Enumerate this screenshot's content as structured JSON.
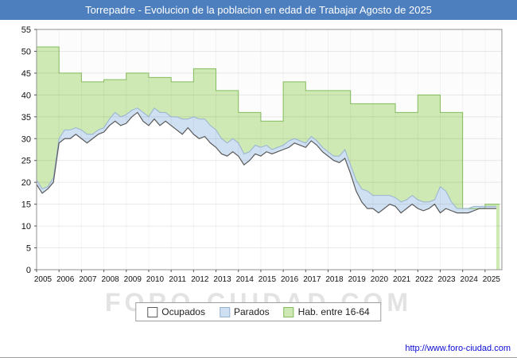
{
  "title_bar": {
    "text": "Torrepadre - Evolucion de la poblacion en edad de Trabajar Agosto de 2025",
    "bg": "#4d7fbe"
  },
  "watermark": "FORO-CIUDAD.COM",
  "footer": {
    "url": "http://www.foro-ciudad.com"
  },
  "chart_data": {
    "type": "area",
    "title": "Torrepadre - Evolucion de la poblacion en edad de Trabajar Agosto de 2025",
    "xlabel": "",
    "ylabel": "",
    "ylim": [
      0,
      55
    ],
    "ytick_step": 5,
    "xlim": [
      2005,
      2025.75
    ],
    "xticks": [
      2005,
      2006,
      2007,
      2008,
      2009,
      2010,
      2011,
      2012,
      2013,
      2014,
      2015,
      2016,
      2017,
      2018,
      2019,
      2020,
      2021,
      2022,
      2023,
      2024,
      2025
    ],
    "grid": true,
    "legend_position": "bottom",
    "legend": [
      "Ocupados",
      "Parados",
      "Hab. entre 16-64"
    ],
    "series": [
      {
        "name": "Ocupados",
        "kind": "line-area",
        "fill": "#ffffff",
        "stroke": "#5a5a5a",
        "x_start": 2005,
        "x_step": 0.25,
        "values": [
          19.5,
          17.5,
          18.5,
          20,
          29,
          30,
          30,
          31,
          30,
          29,
          30,
          31,
          31.5,
          33,
          34,
          33,
          33.5,
          35,
          36,
          34,
          33,
          34.5,
          33,
          34,
          33,
          32,
          31,
          32.5,
          31,
          30,
          30.5,
          29,
          28,
          26.5,
          26,
          27,
          26,
          24,
          25,
          26.5,
          26,
          27,
          26.5,
          27,
          27.5,
          28,
          29,
          28.5,
          28,
          29.5,
          28.5,
          27,
          26,
          25,
          24.5,
          25.5,
          22,
          18,
          15.5,
          14,
          14,
          13,
          14,
          15,
          14.5,
          13,
          14,
          15,
          14,
          13.5,
          14,
          15,
          13,
          14,
          13.5,
          13,
          13,
          13,
          13.5,
          14,
          14,
          14,
          14
        ]
      },
      {
        "name": "Parados",
        "kind": "stacked-area",
        "fill": "#cfe0f2",
        "stroke": "#97b3d0",
        "x_start": 2005,
        "x_step": 0.25,
        "values": [
          1,
          1,
          0.5,
          1,
          1,
          2,
          2,
          1.5,
          2,
          2,
          1,
          1,
          1,
          1.5,
          2,
          2,
          2,
          1.5,
          1,
          2,
          2,
          2.5,
          3,
          2,
          2,
          3,
          3.5,
          2,
          4,
          4.5,
          4,
          4,
          4,
          3.5,
          3,
          3,
          3,
          2.5,
          2,
          2,
          2,
          1.5,
          1,
          1,
          1,
          1.5,
          1,
          1,
          1,
          1,
          1,
          1,
          1,
          1,
          1.5,
          2,
          2,
          2.5,
          3,
          4,
          3,
          4,
          3,
          2,
          2,
          2.5,
          2,
          2,
          2,
          2,
          1.5,
          1,
          6,
          4,
          2,
          1,
          1,
          1,
          1,
          0.5,
          0.5,
          0.5,
          0.5
        ]
      },
      {
        "name": "Hab. entre 16-64",
        "kind": "step-area",
        "fill": "#cfe9b4",
        "stroke": "#84bb5d",
        "x": [
          2005,
          2006,
          2007,
          2008,
          2009,
          2010,
          2011,
          2012,
          2013,
          2014,
          2015,
          2016,
          2017,
          2018,
          2019,
          2020,
          2021,
          2022,
          2023,
          2024,
          2025
        ],
        "values": [
          51,
          45,
          43,
          43.5,
          45,
          44,
          43,
          46,
          41,
          36,
          34,
          43,
          41,
          41,
          38,
          38,
          36,
          40,
          36,
          14,
          15
        ]
      }
    ]
  }
}
